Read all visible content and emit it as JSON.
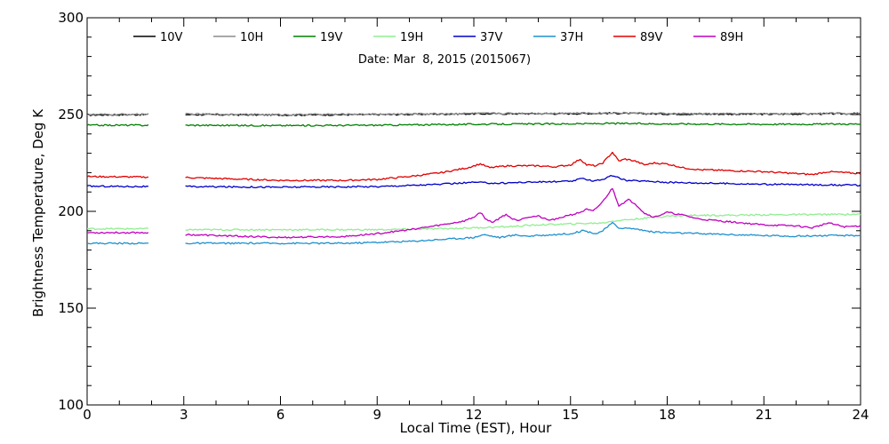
{
  "chart_data": {
    "type": "line",
    "title": "",
    "subtitle": "Date: Mar  8, 2015 (2015067)",
    "xlabel": "Local Time (EST), Hour",
    "ylabel": "Brightness Temperature, Deg K",
    "xlim": [
      0,
      24
    ],
    "ylim": [
      100,
      300
    ],
    "xticks": [
      0,
      3,
      6,
      9,
      12,
      15,
      18,
      21,
      24
    ],
    "yticks": [
      100,
      150,
      200,
      250,
      300
    ],
    "grid": false,
    "legend_position": "top",
    "gap": [
      1.95,
      3.0
    ],
    "series": [
      {
        "name": "10V",
        "color": "#000000",
        "x": [
          0,
          1.9,
          3,
          6,
          9,
          12,
          15,
          16.3,
          18,
          21,
          24
        ],
        "y": [
          249.8,
          250,
          250,
          249.8,
          250,
          250.4,
          250.5,
          250.7,
          250.3,
          250.2,
          250.5
        ]
      },
      {
        "name": "10H",
        "color": "#8c8c8c",
        "x": [
          0,
          1.9,
          3,
          6,
          9,
          12,
          15,
          16.3,
          18,
          21,
          24
        ],
        "y": [
          250,
          250.2,
          250.3,
          250,
          250.2,
          250.6,
          250.7,
          250.9,
          250.5,
          250.4,
          250.7
        ]
      },
      {
        "name": "19V",
        "color": "#008000",
        "x": [
          0,
          1.9,
          3,
          6,
          9,
          12,
          15,
          16.3,
          18,
          21,
          24
        ],
        "y": [
          244.5,
          244.5,
          244.5,
          244.3,
          244.5,
          245,
          245.2,
          245.4,
          245.2,
          245,
          245.1
        ]
      },
      {
        "name": "19H",
        "color": "#90ee90",
        "x": [
          0,
          1.9,
          3,
          6,
          9,
          11,
          12,
          13,
          14,
          15,
          16,
          16.3,
          17,
          18,
          19,
          20,
          21,
          22,
          23,
          24
        ],
        "y": [
          191,
          191,
          190.5,
          190.5,
          190.5,
          191,
          191.5,
          192,
          193,
          193.5,
          194,
          195,
          196,
          197.5,
          198,
          198,
          198.2,
          198.3,
          198.4,
          198.5
        ]
      },
      {
        "name": "37V",
        "color": "#0000c8",
        "x": [
          0,
          1.9,
          3,
          6,
          9,
          11,
          12,
          12.7,
          13.5,
          15,
          15.4,
          15.7,
          16,
          16.3,
          16.7,
          17.5,
          18,
          21,
          24
        ],
        "y": [
          213,
          212.8,
          212.8,
          212.5,
          212.8,
          214,
          215,
          214.5,
          215,
          215.5,
          217,
          215.8,
          216.5,
          218.5,
          216,
          215.5,
          215,
          214,
          213.5
        ]
      },
      {
        "name": "37H",
        "color": "#1e90d0",
        "x": [
          0,
          1.9,
          3,
          6,
          8,
          9,
          10,
          11,
          12,
          12.3,
          12.8,
          13.3,
          13.7,
          14,
          14.5,
          15,
          15.4,
          15.8,
          16,
          16.3,
          16.5,
          17,
          17.5,
          18,
          19,
          20,
          21,
          22,
          23,
          24
        ],
        "y": [
          183.5,
          183.5,
          183.5,
          183.5,
          183.5,
          184,
          184.5,
          185.5,
          186.5,
          188,
          186.5,
          187.8,
          187.2,
          187.5,
          188,
          188.5,
          190,
          188.5,
          190,
          194,
          191.5,
          191,
          189.5,
          189,
          188.5,
          188,
          187.5,
          187.2,
          187.5,
          187.5
        ]
      },
      {
        "name": "89V",
        "color": "#e00000",
        "x": [
          0,
          1.9,
          3,
          6,
          8,
          9,
          10,
          11,
          11.8,
          12.2,
          12.5,
          13,
          14,
          14.5,
          15,
          15.3,
          15.5,
          15.8,
          16,
          16.3,
          16.5,
          16.7,
          17,
          17.3,
          17.6,
          18,
          18.5,
          19,
          20,
          21,
          22,
          22.5,
          23,
          24
        ],
        "y": [
          218,
          217.7,
          217.5,
          216,
          216,
          216.5,
          218,
          220,
          222.5,
          224.5,
          222.5,
          223.5,
          223.5,
          223,
          224,
          227,
          224,
          223.5,
          225,
          230.5,
          226,
          227,
          226,
          224,
          225,
          224.5,
          222.5,
          221.5,
          221,
          220.5,
          219.5,
          219,
          220.5,
          219.5
        ]
      },
      {
        "name": "89H",
        "color": "#c000c0",
        "x": [
          0,
          1.9,
          3,
          6,
          8,
          9,
          10,
          11,
          11.7,
          12,
          12.2,
          12.4,
          12.6,
          12.8,
          13,
          13.2,
          13.4,
          13.6,
          14,
          14.3,
          14.6,
          14.9,
          15.1,
          15.3,
          15.5,
          15.7,
          16,
          16.3,
          16.5,
          16.8,
          17,
          17.3,
          17.6,
          18,
          18.5,
          19,
          20,
          21,
          22,
          22.5,
          23,
          23.5,
          24
        ],
        "y": [
          189,
          189,
          188,
          186.5,
          187,
          188.5,
          190.5,
          193,
          195,
          197,
          199.5,
          195.5,
          194.5,
          196.5,
          198.5,
          196,
          195.5,
          197,
          197.5,
          195.5,
          196,
          198,
          198.5,
          199.5,
          201,
          200,
          205,
          212,
          203,
          206,
          204,
          199,
          197,
          199.5,
          198,
          196,
          194.5,
          193,
          192.5,
          191.5,
          194,
          192,
          192.5
        ]
      }
    ]
  }
}
